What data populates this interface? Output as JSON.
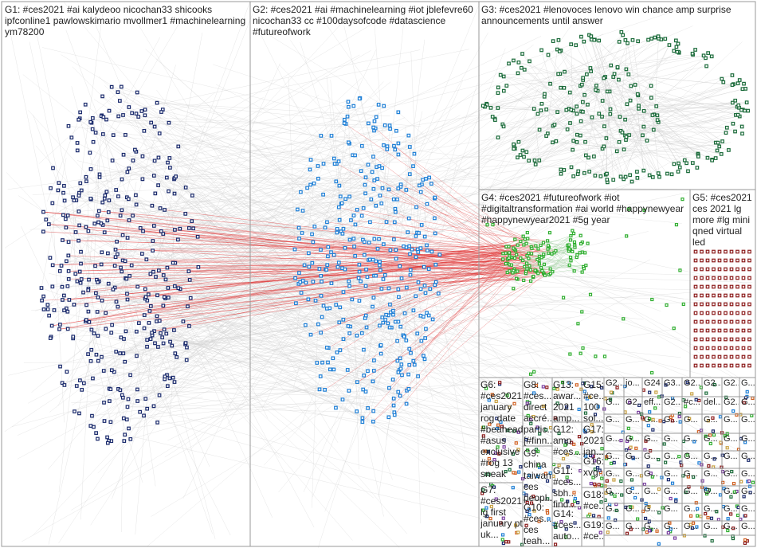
{
  "groups": [
    {
      "id": "G1",
      "label": "G1: #ces2021 #ai kalydeoo nicochan33 shicooks\nipfconline1 pawlowskimario mvollmer1 #machinelearning\nym78200",
      "color": "#1a2a6c"
    },
    {
      "id": "G2",
      "label": "G2: #ces2021 #ai #machinelearning #iot jblefevre60\nnicochan33 cc #100daysofcode #datascience\n#futureofwork",
      "color": "#1e7fd6"
    },
    {
      "id": "G3",
      "label": "G3: #ces2021 #lenovoces lenovo win chance amp surprise\nannouncements until answer",
      "color": "#1b6b3a"
    },
    {
      "id": "G4",
      "label": "G4: #ces2021 #futureofwork #iot\n#digitaltransformation #ai world #happynewyear\n#happynewyear2021 #5g year",
      "color": "#2fae2f"
    },
    {
      "id": "G5",
      "label": "G5: #ces2021\nces 2021 lg\nmore #lg mini\nqned virtual\nled",
      "color": "#8b1a1a"
    },
    {
      "id": "G6",
      "label": "G6:\n#ces2021\njanuary\nrog date\n#beahead\n#asus\nexclusive\n#rog 13\nsneak",
      "color": "#c8a040"
    },
    {
      "id": "G7",
      "label": "G7:\n#ces2021\nlg first\njanuary pt\nuk...",
      "color": "#c8a040"
    },
    {
      "id": "G8",
      "label": "G8:\n#ces...\ndirect\naccré...\npartic...\n[#finn...",
      "color": "#c8a040"
    },
    {
      "id": "G9",
      "label": "G9:\nchina\ntaiwan\nces\npeopl...",
      "color": "#c8a040"
    },
    {
      "id": "G10",
      "label": "G10:\n#ces...\nces\nteah...",
      "color": "#c8a040"
    },
    {
      "id": "G13",
      "label": "G13:\nawar...\n2021\namp...",
      "color": "#c8a040"
    },
    {
      "id": "G12",
      "label": "G12:\namp\n#ces...",
      "color": "#c8a040"
    },
    {
      "id": "G11",
      "label": "G11:\n#ces...\nsbh...\nfind...",
      "color": "#c8a040"
    },
    {
      "id": "G14",
      "label": "G14:\n#ces...\nauto...",
      "color": "#c8a040"
    },
    {
      "id": "G15",
      "label": "G15:\n#ce...\n100\nsol...",
      "color": "#c8a040"
    },
    {
      "id": "G17",
      "label": "G17:\n2021\njan...",
      "color": "#c8a040"
    },
    {
      "id": "G16",
      "label": "G16:\nxvg...",
      "color": "#c8a040"
    },
    {
      "id": "G18",
      "label": "G18:\n#ce...",
      "color": "#c8a040"
    },
    {
      "id": "G19",
      "label": "G19:\n#ce...",
      "color": "#c8a040"
    }
  ],
  "small_group_label": "G...",
  "small_group_top_labels": [
    "G2...",
    "jo...",
    "G24",
    "G3...",
    "G2...",
    "G2...",
    "G2...",
    "G...",
    "G...",
    "G2...",
    "eff...",
    "G2...",
    "#c...",
    "del...",
    "G2..."
  ],
  "colors": {
    "edge_gray": "#cfcfcf",
    "edge_red": "#e03030",
    "edge_green": "#9ecf9e",
    "border": "#999999",
    "g1": "#1a2a6c",
    "g2": "#1e7fd6",
    "g3": "#1b6b3a",
    "g4": "#2fae2f",
    "g5": "#8b1a1a"
  }
}
